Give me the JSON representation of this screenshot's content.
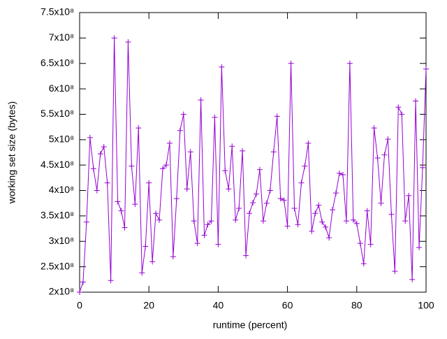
{
  "chart_data": {
    "type": "line",
    "xlabel": "runtime (percent)",
    "ylabel": "working set size (bytes)",
    "x": [
      0,
      1,
      2,
      3,
      4,
      5,
      6,
      7,
      8,
      9,
      10,
      11,
      12,
      13,
      14,
      15,
      16,
      17,
      18,
      19,
      20,
      21,
      22,
      23,
      24,
      25,
      26,
      27,
      28,
      29,
      30,
      31,
      32,
      33,
      34,
      35,
      36,
      37,
      38,
      39,
      40,
      41,
      42,
      43,
      44,
      45,
      46,
      47,
      48,
      49,
      50,
      51,
      52,
      53,
      54,
      55,
      56,
      57,
      58,
      59,
      60,
      61,
      62,
      63,
      64,
      65,
      66,
      67,
      68,
      69,
      70,
      71,
      72,
      73,
      74,
      75,
      76,
      77,
      78,
      79,
      80,
      81,
      82,
      83,
      84,
      85,
      86,
      87,
      88,
      89,
      90,
      91,
      92,
      93,
      94,
      95,
      96,
      97,
      98,
      99,
      100
    ],
    "series": [
      {
        "color": "#9400d3",
        "values": [
          200000000.0,
          220000000.0,
          338000000.0,
          504000000.0,
          443000000.0,
          400000000.0,
          472000000.0,
          486000000.0,
          415000000.0,
          223000000.0,
          700000000.0,
          378000000.0,
          360000000.0,
          327000000.0,
          692000000.0,
          448000000.0,
          373000000.0,
          523000000.0,
          238000000.0,
          290000000.0,
          415000000.0,
          260000000.0,
          355000000.0,
          342000000.0,
          443000000.0,
          450000000.0,
          493000000.0,
          270000000.0,
          384000000.0,
          518000000.0,
          550000000.0,
          403000000.0,
          476000000.0,
          340000000.0,
          296000000.0,
          578000000.0,
          312000000.0,
          333000000.0,
          340000000.0,
          544000000.0,
          294000000.0,
          643000000.0,
          439000000.0,
          403000000.0,
          487000000.0,
          342000000.0,
          365000000.0,
          478000000.0,
          272000000.0,
          355000000.0,
          376000000.0,
          393000000.0,
          441000000.0,
          340000000.0,
          375000000.0,
          400000000.0,
          476000000.0,
          546000000.0,
          384000000.0,
          381000000.0,
          330000000.0,
          650000000.0,
          365000000.0,
          333000000.0,
          415000000.0,
          448000000.0,
          493000000.0,
          320000000.0,
          355000000.0,
          371000000.0,
          338000000.0,
          328000000.0,
          307000000.0,
          362000000.0,
          395000000.0,
          434000000.0,
          431000000.0,
          340000000.0,
          650000000.0,
          342000000.0,
          335000000.0,
          296000000.0,
          256000000.0,
          360000000.0,
          294000000.0,
          523000000.0,
          464000000.0,
          375000000.0,
          470000000.0,
          501000000.0,
          353000000.0,
          241000000.0,
          564000000.0,
          550000000.0,
          340000000.0,
          390000000.0,
          225000000.0,
          576000000.0,
          288000000.0,
          445000000.0,
          639000000.0
        ]
      }
    ],
    "xlim": [
      0,
      100
    ],
    "xticks": [
      0,
      20,
      40,
      60,
      80,
      100
    ],
    "ylim": [
      200000000.0,
      750000000.0
    ],
    "yticks": [
      {
        "value": 200000000.0,
        "label": "2x10⁸"
      },
      {
        "value": 250000000.0,
        "label": "2.5x10⁸"
      },
      {
        "value": 300000000.0,
        "label": "3x10⁸"
      },
      {
        "value": 350000000.0,
        "label": "3.5x10⁸"
      },
      {
        "value": 400000000.0,
        "label": "4x10⁸"
      },
      {
        "value": 450000000.0,
        "label": "4.5x10⁸"
      },
      {
        "value": 500000000.0,
        "label": "5x10⁸"
      },
      {
        "value": 550000000.0,
        "label": "5.5x10⁸"
      },
      {
        "value": 600000000.0,
        "label": "6x10⁸"
      },
      {
        "value": 650000000.0,
        "label": "6.5x10⁸"
      },
      {
        "value": 700000000.0,
        "label": "7x10⁸"
      },
      {
        "value": 750000000.0,
        "label": "7.5x10⁸"
      }
    ],
    "grid": false,
    "marker": "+"
  }
}
